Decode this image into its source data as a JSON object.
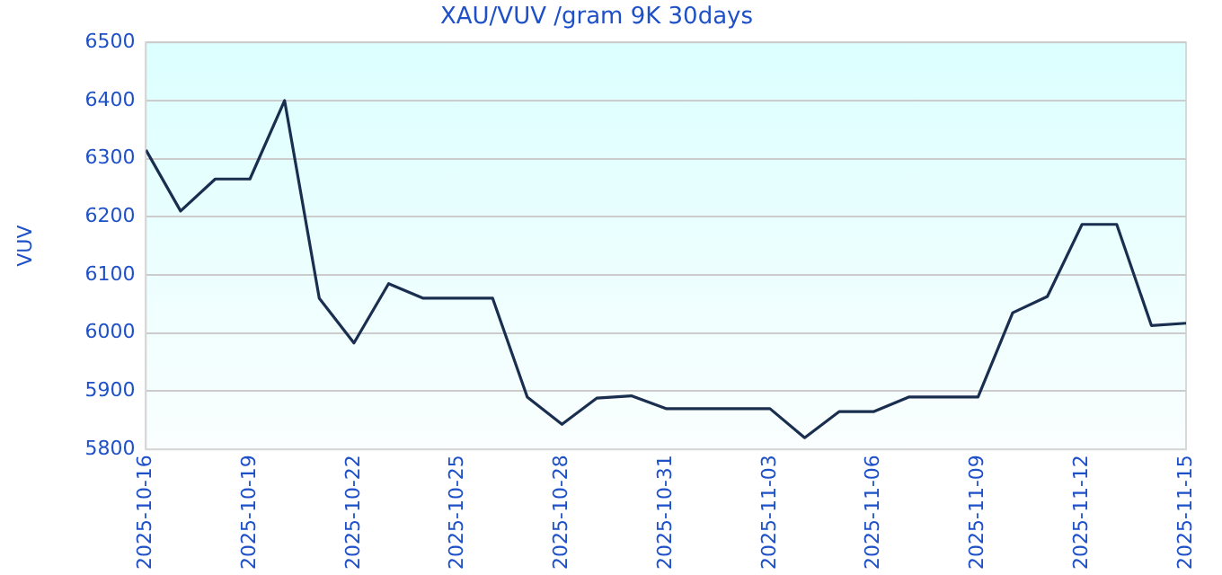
{
  "chart_data": {
    "type": "line",
    "title": "XAU/VUV /gram 9K 30days",
    "ylabel": "VUV",
    "x": [
      "2025-10-16",
      "2025-10-17",
      "2025-10-18",
      "2025-10-19",
      "2025-10-20",
      "2025-10-21",
      "2025-10-22",
      "2025-10-23",
      "2025-10-24",
      "2025-10-25",
      "2025-10-26",
      "2025-10-27",
      "2025-10-28",
      "2025-10-29",
      "2025-10-30",
      "2025-10-31",
      "2025-11-01",
      "2025-11-02",
      "2025-11-03",
      "2025-11-04",
      "2025-11-05",
      "2025-11-06",
      "2025-11-07",
      "2025-11-08",
      "2025-11-09",
      "2025-11-10",
      "2025-11-11",
      "2025-11-12",
      "2025-11-13",
      "2025-11-14",
      "2025-11-15"
    ],
    "series": [
      {
        "color": "#1a2e4f",
        "values": [
          6315,
          6210,
          6265,
          6265,
          6400,
          6060,
          5983,
          6085,
          6060,
          6060,
          6060,
          5890,
          5843,
          5888,
          5892,
          5870,
          5870,
          5870,
          5870,
          5820,
          5865,
          5865,
          5890,
          5890,
          5890,
          6035,
          6063,
          6187,
          6187,
          6013,
          6017
        ]
      }
    ],
    "xlim": [
      "2025-10-16",
      "2025-11-15"
    ],
    "xticks": [
      "2025-10-16",
      "2025-10-19",
      "2025-10-22",
      "2025-10-25",
      "2025-10-28",
      "2025-10-31",
      "2025-11-03",
      "2025-11-06",
      "2025-11-09",
      "2025-11-12",
      "2025-11-15"
    ],
    "ylim": [
      5800,
      6500
    ],
    "yticks": [
      5800,
      5900,
      6000,
      6100,
      6200,
      6300,
      6400,
      6500
    ],
    "grid": "y",
    "legend": false,
    "marker": "none",
    "line_style": "solid"
  }
}
